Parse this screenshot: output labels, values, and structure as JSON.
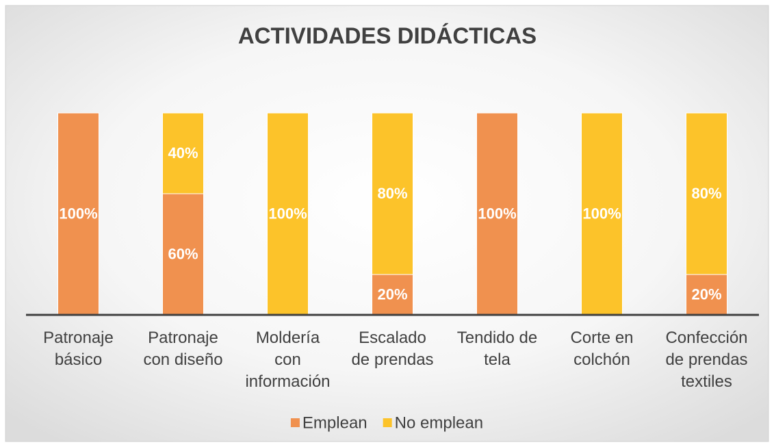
{
  "chart_data": {
    "type": "stacked_bar",
    "title": "ACTIVIDADES DIDÁCTICAS",
    "categories": [
      "Patronaje\nbásico",
      "Patronaje\ncon diseño",
      "Moldería\ncon\ninformación",
      "Escalado\nde prendas",
      "Tendido de\ntela",
      "Corte en\ncolchón",
      "Confección\nde prendas\ntextiles"
    ],
    "series": [
      {
        "name": "Emplean",
        "color": "#f0914f",
        "values": [
          100,
          60,
          0,
          20,
          100,
          0,
          20
        ],
        "value_labels": [
          "100%",
          "60%",
          null,
          "20%",
          "100%",
          null,
          "20%"
        ]
      },
      {
        "name": "No emplean",
        "color": "#fcc32a",
        "values": [
          0,
          40,
          100,
          80,
          0,
          100,
          80
        ],
        "value_labels": [
          null,
          "40%",
          "100%",
          "80%",
          null,
          "100%",
          "80%"
        ]
      }
    ],
    "ylim": [
      0,
      100
    ],
    "legend": "bottom"
  }
}
